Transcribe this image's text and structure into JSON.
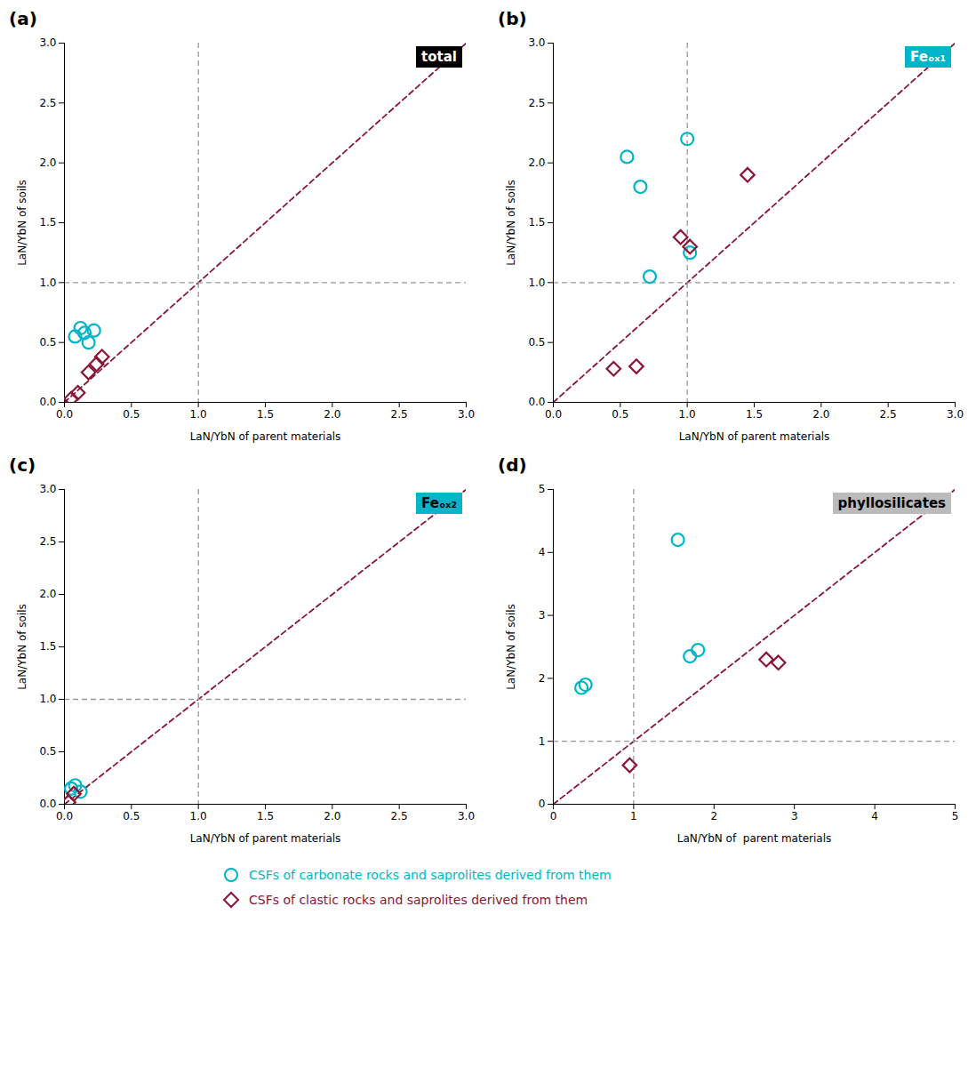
{
  "chart_data": [
    {
      "type": "scatter",
      "title": "(a)",
      "xlabel": "LaN/YbN of parent materials",
      "ylabel": "LaN/YbN of soils",
      "xlim": [
        0,
        3.0
      ],
      "ylim": [
        0,
        3.0
      ],
      "xticks": [
        {
          "value": 0.0,
          "label": "0.0"
        },
        0.5,
        {
          "value": 1.0,
          "label": "1.0"
        },
        1.5,
        {
          "value": 2.0,
          "label": "2.0"
        },
        2.5,
        {
          "value": 3.0,
          "label": "3.0"
        }
      ],
      "yticks": [
        {
          "value": 0.0,
          "label": "0.0"
        },
        0.5,
        {
          "value": 1.0,
          "label": "1.0"
        },
        1.5,
        {
          "value": 2.0,
          "label": "2.0"
        },
        2.5,
        {
          "value": 3.0,
          "label": "3.0"
        }
      ],
      "grid": false,
      "legend": "bottom",
      "annotations": [
        {
          "text": "total",
          "color": "#ffffff",
          "background": "#000000"
        }
      ],
      "reference_lines": [
        {
          "type": "diagonal",
          "color": "#8b1535",
          "line_style": "dashed"
        },
        {
          "type": "vertical",
          "x": 1.0,
          "color": "#999999",
          "line_style": "dashed"
        },
        {
          "type": "horizontal",
          "y": 1.0,
          "color": "#999999",
          "line_style": "dashed"
        }
      ],
      "series": [
        {
          "name": "CSFs of carbonate rocks and saprolites derived from them",
          "color": "#00b5c8",
          "marker": "circle",
          "x": [
            0.08,
            0.12,
            0.15,
            0.18,
            0.22
          ],
          "values": [
            0.55,
            0.62,
            0.58,
            0.5,
            0.6
          ]
        },
        {
          "name": "CSFs of clastic rocks and saprolites derived from them",
          "color": "#8b1535",
          "marker": "diamond",
          "x": [
            0.05,
            0.1,
            0.18,
            0.24,
            0.28
          ],
          "values": [
            0.03,
            0.08,
            0.25,
            0.32,
            0.38
          ]
        }
      ]
    },
    {
      "type": "scatter",
      "title": "(b)",
      "xlabel": "LaN/YbN of parent materials",
      "ylabel": "LaN/YbN of soils",
      "xlim": [
        0,
        3.0
      ],
      "ylim": [
        0,
        3.0
      ],
      "xticks": [
        {
          "value": 0.0,
          "label": "0.0"
        },
        0.5,
        {
          "value": 1.0,
          "label": "1.0"
        },
        1.5,
        {
          "value": 2.0,
          "label": "2.0"
        },
        2.5,
        {
          "value": 3.0,
          "label": "3.0"
        }
      ],
      "yticks": [
        {
          "value": 0.0,
          "label": "0.0"
        },
        0.5,
        {
          "value": 1.0,
          "label": "1.0"
        },
        1.5,
        {
          "value": 2.0,
          "label": "2.0"
        },
        2.5,
        {
          "value": 3.0,
          "label": "3.0"
        }
      ],
      "grid": false,
      "legend": "bottom",
      "annotations": [
        {
          "text": "Feₒₓ₁",
          "color": "#ffffff",
          "background": "#00b5c8"
        }
      ],
      "reference_lines": [
        {
          "type": "diagonal",
          "color": "#8b1535",
          "line_style": "dashed"
        },
        {
          "type": "vertical",
          "x": 1.0,
          "color": "#999999",
          "line_style": "dashed"
        },
        {
          "type": "horizontal",
          "y": 1.0,
          "color": "#999999",
          "line_style": "dashed"
        }
      ],
      "series": [
        {
          "name": "CSFs of carbonate rocks and saprolites derived from them",
          "color": "#00b5c8",
          "marker": "circle",
          "x": [
            0.55,
            0.65,
            0.72,
            1.0,
            1.02
          ],
          "values": [
            2.05,
            1.8,
            1.05,
            2.2,
            1.25
          ]
        },
        {
          "name": "CSFs of clastic rocks and saprolites derived from them",
          "color": "#8b1535",
          "marker": "diamond",
          "x": [
            0.45,
            0.62,
            0.95,
            1.02,
            1.45
          ],
          "values": [
            0.28,
            0.3,
            1.38,
            1.3,
            1.9
          ]
        }
      ]
    },
    {
      "type": "scatter",
      "title": "(c)",
      "xlabel": "LaN/YbN of parent materials",
      "ylabel": "LaN/YbN of soils",
      "xlim": [
        0,
        3.0
      ],
      "ylim": [
        0,
        3.0
      ],
      "xticks": [
        {
          "value": 0.0,
          "label": "0.0"
        },
        0.5,
        {
          "value": 1.0,
          "label": "1.0"
        },
        1.5,
        {
          "value": 2.0,
          "label": "2.0"
        },
        2.5,
        {
          "value": 3.0,
          "label": "3.0"
        }
      ],
      "yticks": [
        {
          "value": 0.0,
          "label": "0.0"
        },
        0.5,
        {
          "value": 1.0,
          "label": "1.0"
        },
        1.5,
        {
          "value": 2.0,
          "label": "2.0"
        },
        2.5,
        {
          "value": 3.0,
          "label": "3.0"
        }
      ],
      "grid": false,
      "legend": "bottom",
      "annotations": [
        {
          "text": "Feₒₓ₂",
          "color": "#000000",
          "background": "#00b5c8"
        }
      ],
      "reference_lines": [
        {
          "type": "diagonal",
          "color": "#8b1535",
          "line_style": "dashed"
        },
        {
          "type": "vertical",
          "x": 1.0,
          "color": "#999999",
          "line_style": "dashed"
        },
        {
          "type": "horizontal",
          "y": 1.0,
          "color": "#999999",
          "line_style": "dashed"
        }
      ],
      "series": [
        {
          "name": "CSFs of carbonate rocks and saprolites derived from them",
          "color": "#00b5c8",
          "marker": "circle",
          "x": [
            0.05,
            0.08,
            0.12
          ],
          "values": [
            0.15,
            0.18,
            0.12
          ]
        },
        {
          "name": "CSFs of clastic rocks and saprolites derived from them",
          "color": "#8b1535",
          "marker": "diamond",
          "x": [
            0.03,
            0.07
          ],
          "values": [
            0.02,
            0.1
          ]
        }
      ]
    },
    {
      "type": "scatter",
      "title": "(d)",
      "xlabel": "LaN/YbN of  parent materials",
      "ylabel": "LaN/YbN of soils",
      "xlim": [
        0,
        5.0
      ],
      "ylim": [
        0,
        5.0
      ],
      "xticks": [
        0,
        1,
        2,
        3,
        4,
        5
      ],
      "yticks": [
        0,
        1,
        2,
        3,
        4,
        5
      ],
      "grid": false,
      "legend": "bottom",
      "annotations": [
        {
          "text": "phyllosilicates",
          "color": "#000000",
          "background": "#bbbbbb"
        }
      ],
      "reference_lines": [
        {
          "type": "diagonal",
          "color": "#8b1535",
          "line_style": "dashed"
        },
        {
          "type": "vertical",
          "x": 1.0,
          "color": "#999999",
          "line_style": "dashed"
        },
        {
          "type": "horizontal",
          "y": 1.0,
          "color": "#999999",
          "line_style": "dashed"
        }
      ],
      "series": [
        {
          "name": "CSFs of carbonate rocks and saprolites derived from them",
          "color": "#00b5c8",
          "marker": "circle",
          "x": [
            0.35,
            0.4,
            1.55,
            1.7,
            1.8
          ],
          "values": [
            1.85,
            1.9,
            4.2,
            2.35,
            2.45
          ]
        },
        {
          "name": "CSFs of clastic rocks and saprolites derived from them",
          "color": "#8b1535",
          "marker": "diamond",
          "x": [
            0.95,
            2.65,
            2.8
          ],
          "values": [
            0.62,
            2.3,
            2.25
          ]
        }
      ]
    }
  ]
}
